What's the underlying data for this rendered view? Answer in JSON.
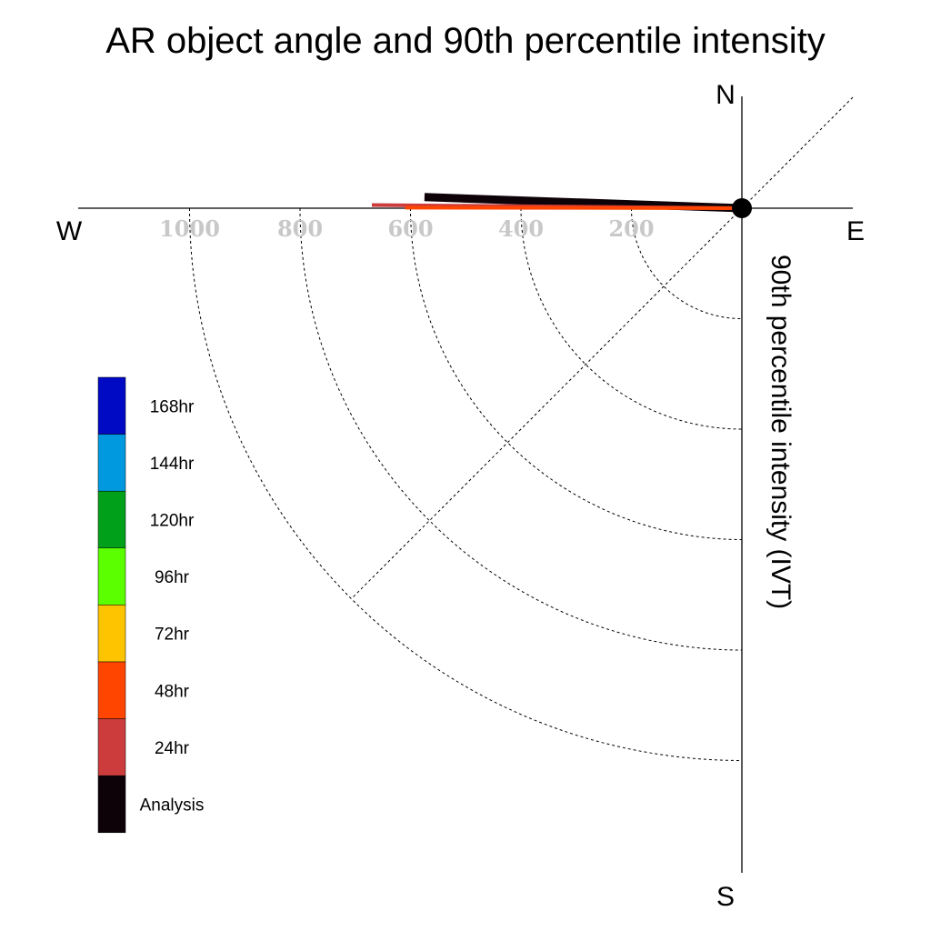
{
  "title": "AR object angle and 90th percentile intensity",
  "compass": {
    "north": "N",
    "south": "S",
    "east": "E",
    "west": "W"
  },
  "chart_data": {
    "type": "polar-vector",
    "title": "AR object angle and 90th percentile intensity",
    "radial_label": "90th percentile intensity (IVT)",
    "radial_ticks": [
      200,
      400,
      600,
      800,
      1000
    ],
    "angle_units": "degrees clockwise from N",
    "series": [
      {
        "name": "Analysis",
        "color": "#0d0208",
        "magnitude": 575,
        "angle_deg": 272
      },
      {
        "name": "24hr",
        "color": "#cc3c3c",
        "magnitude": 670,
        "angle_deg": 270.5
      },
      {
        "name": "48hr",
        "color": "#ff4500",
        "magnitude": 610,
        "angle_deg": 270.1
      }
    ],
    "legend": [
      {
        "label": "168hr",
        "color": "#0009c4"
      },
      {
        "label": "144hr",
        "color": "#0099e0"
      },
      {
        "label": "120hr",
        "color": "#00a01a"
      },
      {
        "label": "96hr",
        "color": "#5cff00"
      },
      {
        "label": "72hr",
        "color": "#ffc400"
      },
      {
        "label": "48hr",
        "color": "#ff4500"
      },
      {
        "label": "24hr",
        "color": "#cc3c3c"
      },
      {
        "label": "Analysis",
        "color": "#0d0208"
      }
    ],
    "legend_position": "left"
  }
}
